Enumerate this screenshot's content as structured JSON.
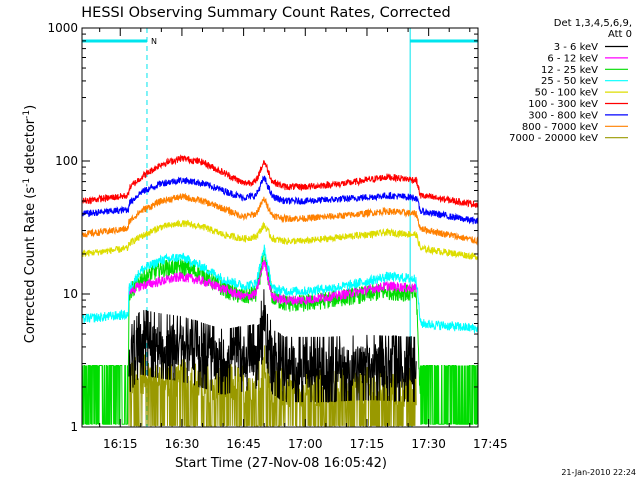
{
  "chart_data": {
    "type": "line",
    "title": "HESSI Observing Summary Count Rates, Corrected",
    "xlabel": "Start Time (27-Nov-08 16:05:42)",
    "ylabel_main": "Corrected Count Rate (s",
    "ylabel_sup1": "-1",
    "ylabel_mid": " detector",
    "ylabel_sup2": "-1",
    "ylabel_end": ")",
    "y_scale": "log",
    "ylim": [
      1,
      1000
    ],
    "xlim_minutes": [
      5.7,
      102
    ],
    "x_ticks": [
      {
        "label": "16:15",
        "min": 15
      },
      {
        "label": "16:30",
        "min": 30
      },
      {
        "label": "16:45",
        "min": 45
      },
      {
        "label": "17:00",
        "min": 60
      },
      {
        "label": "17:15",
        "min": 75
      },
      {
        "label": "17:30",
        "min": 90
      },
      {
        "label": "17:45",
        "min": 105
      }
    ],
    "y_ticks": [
      {
        "label": "1",
        "value": 1
      },
      {
        "label": "10",
        "value": 10
      },
      {
        "label": "100",
        "value": 100
      },
      {
        "label": "1000",
        "value": 1000
      }
    ],
    "legend_header": [
      "Det 1,3,4,5,6,9,",
      "Att 0"
    ],
    "legend_placement": "right",
    "flag_label": "N",
    "timestamp": "21-Jan-2010 22:24",
    "night_intervals_minutes": [
      [
        5.7,
        21.5
      ],
      [
        85.5,
        102
      ]
    ],
    "series": [
      {
        "name": "3 - 6 keV",
        "color": "#000000",
        "x": [
          5.7,
          17,
          17.1,
          20,
          25,
          30,
          40,
          48,
          50,
          52,
          55,
          65,
          75,
          87,
          88,
          102
        ],
        "y": [
          null,
          null,
          3.2,
          4.5,
          4.2,
          4.0,
          3.2,
          3.5,
          6.5,
          3.2,
          2.8,
          2.8,
          2.9,
          2.8,
          null,
          null
        ]
      },
      {
        "name": "6 - 12 keV",
        "color": "#ff00ff",
        "x": [
          5.7,
          17,
          17.1,
          20,
          25,
          30,
          35,
          40,
          45,
          48,
          50,
          52,
          55,
          60,
          70,
          80,
          87,
          88,
          102
        ],
        "y": [
          null,
          null,
          10.5,
          11.5,
          12.5,
          13.5,
          12.5,
          11,
          9.5,
          10,
          18,
          9.5,
          9,
          9,
          10,
          11.5,
          11,
          null,
          null
        ]
      },
      {
        "name": "12 - 25 keV",
        "color": "#00dd00",
        "x": [
          5.7,
          17,
          17.1,
          20,
          25,
          30,
          35,
          40,
          45,
          48,
          50,
          52,
          55,
          60,
          70,
          80,
          87,
          88,
          102
        ],
        "y": [
          1.5,
          1.5,
          10,
          13,
          15.5,
          16,
          14,
          11,
          9.5,
          10,
          19,
          9.5,
          8.5,
          8.5,
          9.5,
          10.5,
          10,
          1.5,
          1.5
        ]
      },
      {
        "name": "25 - 50 keV",
        "color": "#00ffff",
        "x": [
          5.7,
          17,
          17.1,
          20,
          25,
          30,
          35,
          40,
          45,
          48,
          50,
          52,
          55,
          60,
          70,
          80,
          87,
          88,
          102
        ],
        "y": [
          6.5,
          7,
          11,
          15,
          18,
          19,
          16,
          13,
          11.5,
          12,
          22,
          11,
          10.5,
          10.5,
          11.5,
          13.5,
          13,
          6,
          5.5
        ]
      },
      {
        "name": "50 - 100 keV",
        "color": "#dddd00",
        "x": [
          5.7,
          17,
          17.1,
          20,
          25,
          30,
          35,
          40,
          45,
          48,
          50,
          52,
          55,
          60,
          70,
          80,
          87,
          88,
          102
        ],
        "y": [
          20,
          22,
          24,
          27,
          32,
          34,
          32,
          28,
          26,
          27,
          33,
          26,
          25,
          25,
          27,
          29,
          28,
          22,
          19
        ]
      },
      {
        "name": "100 - 300 keV",
        "color": "#ff0000",
        "x": [
          5.7,
          17,
          17.1,
          20,
          25,
          30,
          35,
          40,
          45,
          48,
          50,
          52,
          55,
          60,
          70,
          80,
          87,
          88,
          102
        ],
        "y": [
          50,
          55,
          62,
          75,
          95,
          105,
          98,
          82,
          68,
          70,
          100,
          70,
          64,
          64,
          68,
          76,
          72,
          55,
          47
        ]
      },
      {
        "name": "300 - 800 keV",
        "color": "#0000ff",
        "x": [
          5.7,
          17,
          17.1,
          20,
          25,
          30,
          35,
          40,
          45,
          48,
          50,
          52,
          55,
          60,
          70,
          80,
          87,
          88,
          102
        ],
        "y": [
          40,
          43,
          48,
          58,
          68,
          72,
          68,
          60,
          53,
          55,
          75,
          54,
          50,
          50,
          52,
          55,
          53,
          42,
          35
        ]
      },
      {
        "name": "800 - 7000 keV",
        "color": "#ff8000",
        "x": [
          5.7,
          17,
          17.1,
          20,
          25,
          30,
          35,
          40,
          45,
          48,
          50,
          52,
          55,
          60,
          70,
          80,
          87,
          88,
          102
        ],
        "y": [
          28,
          31,
          35,
          42,
          50,
          54,
          50,
          44,
          38,
          40,
          52,
          39,
          37,
          37,
          39,
          42,
          40,
          31,
          25
        ]
      },
      {
        "name": "7000 - 20000 keV",
        "color": "#999900",
        "x": [
          5.7,
          17,
          17.1,
          20,
          25,
          30,
          40,
          48,
          50,
          52,
          60,
          75,
          87,
          88,
          102
        ],
        "y": [
          null,
          null,
          2.3,
          2.5,
          2.4,
          2.3,
          2.1,
          2.2,
          3.0,
          2.0,
          2.0,
          2.0,
          2.0,
          null,
          null
        ]
      }
    ]
  }
}
